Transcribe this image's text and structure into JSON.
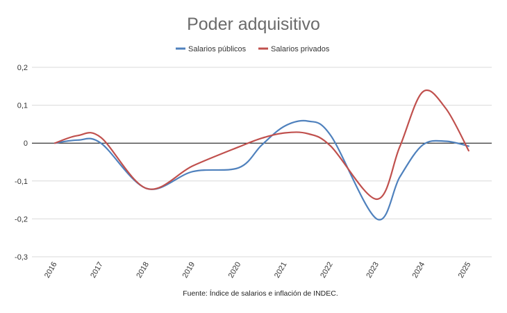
{
  "chart_data": {
    "type": "line",
    "title": "Poder adquisitivo",
    "xlabel": "",
    "ylabel": "",
    "categories": [
      "2016",
      "2017",
      "2018",
      "2019",
      "2020",
      "2021",
      "2022",
      "2023",
      "2024",
      "2025"
    ],
    "x": [
      2016,
      2016.5,
      2017,
      2018,
      2019,
      2020,
      2020.5,
      2021,
      2021.5,
      2022,
      2023,
      2023.5,
      2024,
      2024.5,
      2025
    ],
    "series": [
      {
        "name": "Salarios públicos",
        "color": "#4f81bd",
        "values": [
          0.0,
          0.008,
          0.0,
          -0.12,
          -0.075,
          -0.065,
          -0.005,
          0.045,
          0.058,
          0.02,
          -0.2,
          -0.09,
          -0.005,
          0.005,
          -0.008
        ]
      },
      {
        "name": "Salarios privados",
        "color": "#c0504d",
        "values": [
          0.0,
          0.02,
          0.015,
          -0.12,
          -0.06,
          -0.01,
          0.013,
          0.027,
          0.025,
          -0.008,
          -0.148,
          -0.01,
          0.135,
          0.092,
          -0.02
        ]
      }
    ],
    "yticks": [
      "0,2",
      "0,1",
      "0",
      "-0,1",
      "-0,2",
      "-0,3"
    ],
    "ylim": [
      -0.3,
      0.2
    ],
    "grid": true,
    "legend": "top-center",
    "source": "Fuente: Índice de salarios e inflación de INDEC."
  }
}
